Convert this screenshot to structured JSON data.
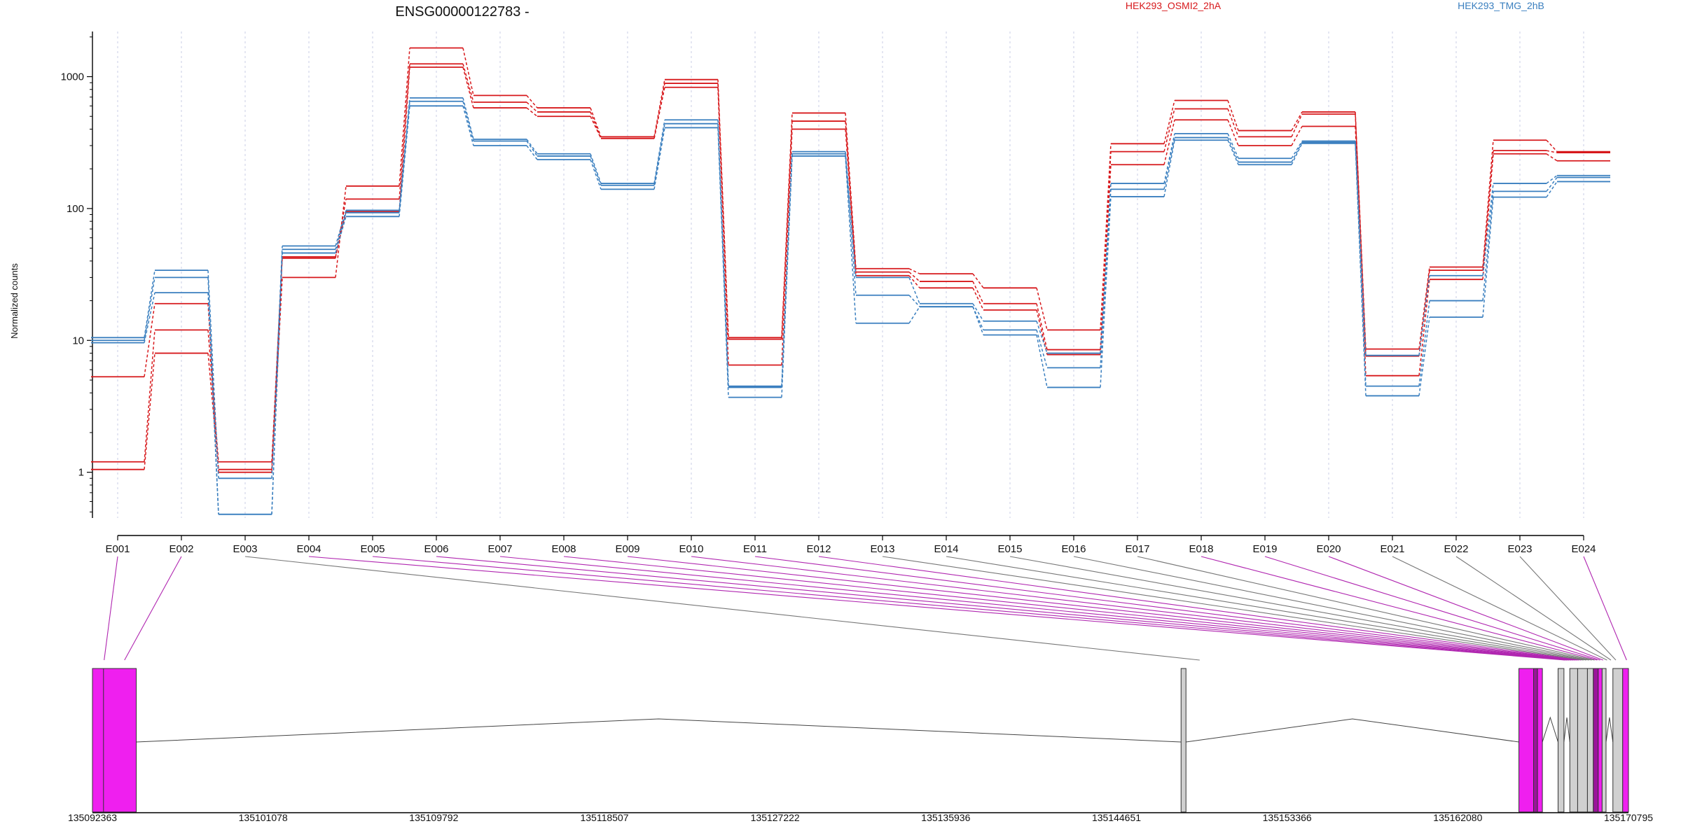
{
  "chart_data": {
    "type": "line",
    "title": "ENSG00000122783 -",
    "ylabel": "Normalized counts",
    "xlabel": "",
    "y_scale": "log",
    "ylim": [
      0.45,
      2200
    ],
    "y_ticks": [
      1,
      10,
      100,
      1000
    ],
    "y_tick_labels": [
      "1",
      "10",
      "100",
      "1000"
    ],
    "grid": "vertical dashed at exon centers",
    "legend_placement": "top",
    "categories": [
      "E001",
      "E002",
      "E003",
      "E004",
      "E005",
      "E006",
      "E007",
      "E008",
      "E009",
      "E010",
      "E011",
      "E012",
      "E013",
      "E014",
      "E015",
      "E016",
      "E017",
      "E018",
      "E019",
      "E020",
      "E021",
      "E022",
      "E023",
      "E024"
    ],
    "series": [
      {
        "name": "HEK293_OSMI2_2hA",
        "group": "HEK293_OSMI2_2hA",
        "color": "#d7191c",
        "values": [
          5.3,
          19,
          1.0,
          30,
          148,
          1650,
          720,
          580,
          350,
          950,
          10.5,
          530,
          35,
          32,
          25,
          12,
          310,
          660,
          390,
          540,
          8.6,
          36,
          330,
          270
        ]
      },
      {
        "name": "",
        "group": "HEK293_OSMI2_2hA",
        "color": "#d7191c",
        "values": [
          1.2,
          12,
          1.2,
          42,
          118,
          1250,
          640,
          540,
          340,
          890,
          10.2,
          460,
          33,
          28,
          19,
          8.5,
          270,
          570,
          350,
          520,
          7.6,
          34,
          275,
          265
        ]
      },
      {
        "name": "",
        "group": "HEK293_OSMI2_2hA",
        "color": "#d7191c",
        "values": [
          1.05,
          8,
          1.05,
          43,
          95,
          1180,
          580,
          500,
          340,
          830,
          6.5,
          400,
          31,
          25,
          17,
          7.8,
          215,
          470,
          300,
          420,
          5.4,
          29,
          260,
          230
        ]
      },
      {
        "name": "HEK293_TMG_2hB",
        "group": "HEK293_TMG_2hB",
        "color": "#3a7fbf",
        "values": [
          10.5,
          34,
          0.9,
          52,
          97,
          690,
          335,
          260,
          155,
          470,
          4.5,
          270,
          30,
          19,
          14,
          8.0,
          155,
          370,
          240,
          325,
          7.7,
          31,
          155,
          178
        ]
      },
      {
        "name": "",
        "group": "HEK293_TMG_2hB",
        "color": "#3a7fbf",
        "values": [
          10,
          30,
          0.48,
          49,
          93,
          650,
          325,
          250,
          150,
          440,
          4.4,
          260,
          22,
          18,
          12,
          6.2,
          140,
          345,
          225,
          318,
          4.5,
          20,
          135,
          172
        ]
      },
      {
        "name": "",
        "group": "HEK293_TMG_2hB",
        "color": "#3a7fbf",
        "values": [
          9.6,
          23,
          0.48,
          46,
          87,
          600,
          300,
          235,
          140,
          410,
          3.7,
          250,
          13.5,
          18,
          11,
          4.4,
          123,
          330,
          215,
          312,
          3.8,
          15,
          122,
          160
        ]
      }
    ],
    "genomic_axis": {
      "tick_labels": [
        "135092363",
        "135101078",
        "135109792",
        "135118507",
        "135127222",
        "135135936",
        "135144651",
        "135153366",
        "135162080",
        "135170795"
      ],
      "start": 135092363,
      "end": 135170795
    },
    "exon_connections": [
      {
        "exon": "E001",
        "pos": 135092960,
        "color": "#b026b0"
      },
      {
        "exon": "E002",
        "pos": 135094000,
        "color": "#b026b0"
      },
      {
        "exon": "E003",
        "pos": 135148900,
        "color": "#777777"
      },
      {
        "exon": "E004",
        "pos": 135167550,
        "color": "#b026b0"
      },
      {
        "exon": "E005",
        "pos": 135167650,
        "color": "#b026b0"
      },
      {
        "exon": "E006",
        "pos": 135167750,
        "color": "#b026b0"
      },
      {
        "exon": "E007",
        "pos": 135167860,
        "color": "#b026b0"
      },
      {
        "exon": "E008",
        "pos": 135167960,
        "color": "#b026b0"
      },
      {
        "exon": "E009",
        "pos": 135168060,
        "color": "#b026b0"
      },
      {
        "exon": "E010",
        "pos": 135168160,
        "color": "#b026b0"
      },
      {
        "exon": "E011",
        "pos": 135168260,
        "color": "#b026b0"
      },
      {
        "exon": "E012",
        "pos": 135168380,
        "color": "#b026b0"
      },
      {
        "exon": "E013",
        "pos": 135168500,
        "color": "#777777"
      },
      {
        "exon": "E014",
        "pos": 135168640,
        "color": "#777777"
      },
      {
        "exon": "E015",
        "pos": 135168780,
        "color": "#777777"
      },
      {
        "exon": "E016",
        "pos": 135168920,
        "color": "#777777"
      },
      {
        "exon": "E017",
        "pos": 135169060,
        "color": "#777777"
      },
      {
        "exon": "E018",
        "pos": 135169200,
        "color": "#b026b0"
      },
      {
        "exon": "E019",
        "pos": 135169350,
        "color": "#b026b0"
      },
      {
        "exon": "E020",
        "pos": 135169500,
        "color": "#b026b0"
      },
      {
        "exon": "E021",
        "pos": 135169700,
        "color": "#777777"
      },
      {
        "exon": "E022",
        "pos": 135169900,
        "color": "#777777"
      },
      {
        "exon": "E023",
        "pos": 135170150,
        "color": "#777777"
      },
      {
        "exon": "E024",
        "pos": 135170700,
        "color": "#b026b0"
      }
    ],
    "gene_model": {
      "exon_blocks": [
        {
          "start": 135092363,
          "end": 135094600,
          "color": "#ef1fef"
        },
        {
          "start": 135147950,
          "end": 135148200,
          "color": "#d0d0d0"
        },
        {
          "start": 135165200,
          "end": 135165950,
          "color": "#ef1fef"
        },
        {
          "start": 135165950,
          "end": 135166150,
          "color": "#9b149b"
        },
        {
          "start": 135166150,
          "end": 135166400,
          "color": "#ef1fef"
        },
        {
          "start": 135167200,
          "end": 135167500,
          "color": "#d0d0d0"
        },
        {
          "start": 135167800,
          "end": 135168200,
          "color": "#d0d0d0"
        },
        {
          "start": 135168200,
          "end": 135168700,
          "color": "#d0d0d0"
        },
        {
          "start": 135168700,
          "end": 135169000,
          "color": "#d0d0d0"
        },
        {
          "start": 135169000,
          "end": 135169250,
          "color": "#9b149b"
        },
        {
          "start": 135169250,
          "end": 135169450,
          "color": "#ef1fef"
        },
        {
          "start": 135169450,
          "end": 135169650,
          "color": "#d0d0d0"
        },
        {
          "start": 135170000,
          "end": 135170500,
          "color": "#d0d0d0"
        },
        {
          "start": 135170500,
          "end": 135170795,
          "color": "#ef1fef"
        }
      ],
      "introns": [
        [
          135094600,
          135147950
        ],
        [
          135148200,
          135165200
        ],
        [
          135166400,
          135167200
        ],
        [
          135167500,
          135167800
        ],
        [
          135169650,
          135170000
        ]
      ]
    }
  }
}
